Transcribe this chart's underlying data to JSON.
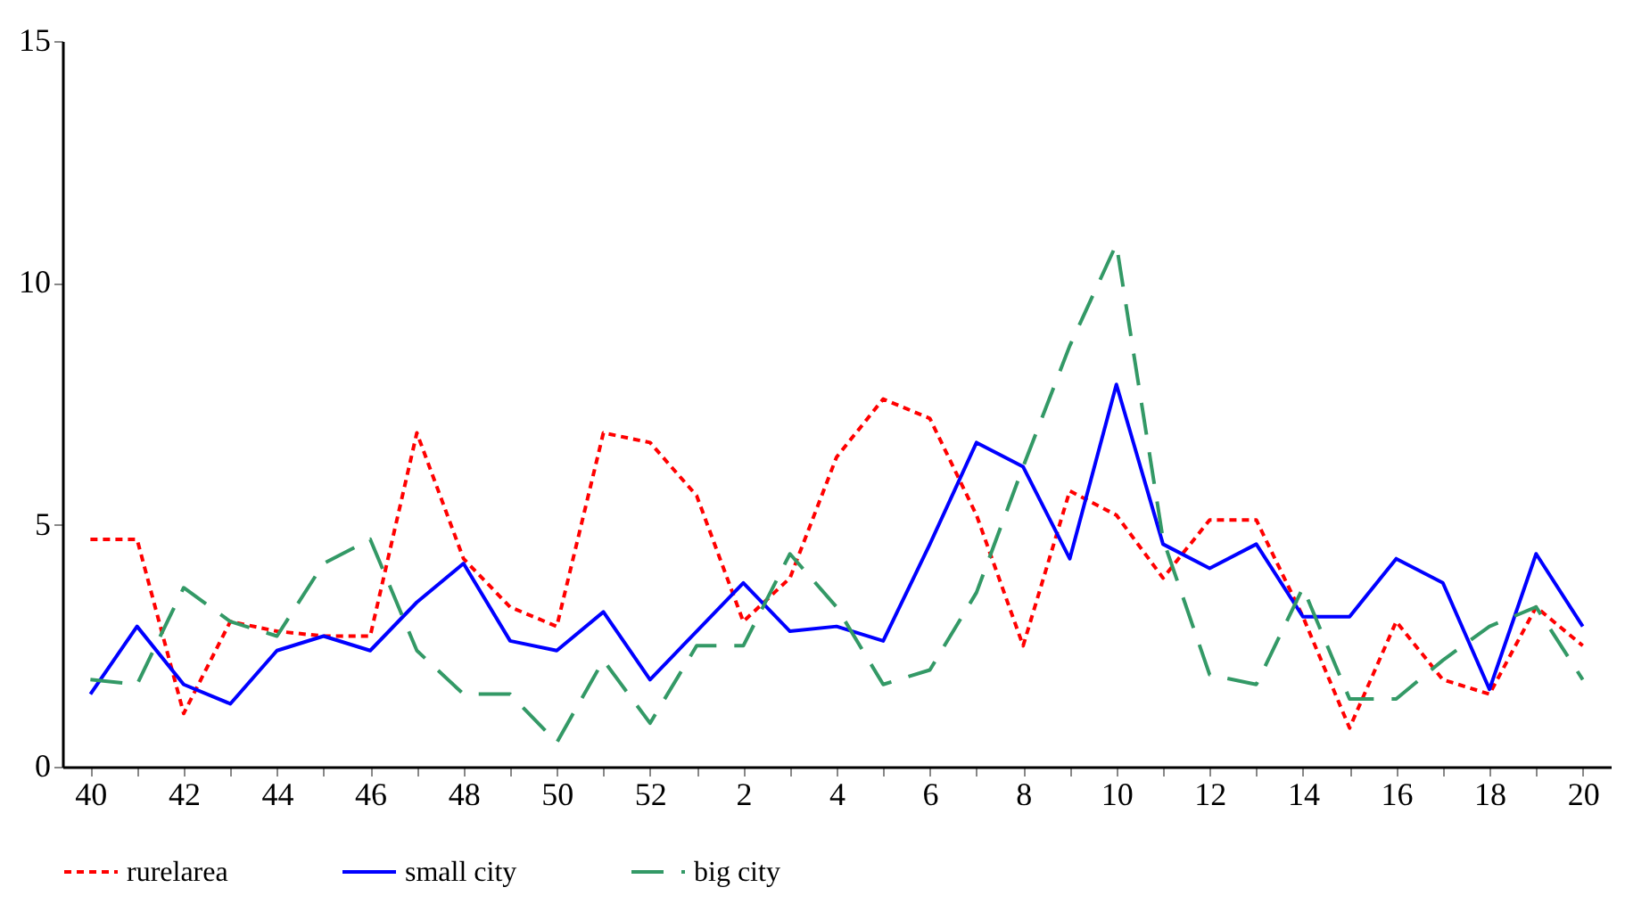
{
  "chart_data": {
    "type": "line",
    "categories": [
      "40",
      null,
      "42",
      null,
      "44",
      null,
      "46",
      null,
      "48",
      null,
      "50",
      null,
      "52",
      null,
      "2",
      null,
      "4",
      null,
      "6",
      null,
      "8",
      null,
      "10",
      null,
      "12",
      null,
      "14",
      null,
      "16",
      null,
      "18",
      null,
      "20"
    ],
    "series": [
      {
        "name": "rurelarea",
        "color": "#ff0000",
        "line_style": "dotted",
        "values": [
          4.7,
          4.7,
          1.1,
          3.0,
          2.8,
          2.7,
          2.7,
          6.9,
          4.3,
          3.3,
          2.9,
          6.9,
          6.7,
          5.6,
          3.0,
          3.9,
          6.4,
          7.6,
          7.2,
          5.2,
          2.5,
          5.7,
          5.2,
          3.9,
          5.1,
          5.1,
          3.1,
          0.8,
          3.0,
          1.8,
          1.5,
          3.3,
          2.5
        ]
      },
      {
        "name": "small city",
        "color": "#0000ff",
        "line_style": "solid",
        "values": [
          1.5,
          2.9,
          1.7,
          1.3,
          2.4,
          2.7,
          2.4,
          3.4,
          4.2,
          2.6,
          2.4,
          3.2,
          1.8,
          2.8,
          3.8,
          2.8,
          2.9,
          2.6,
          4.6,
          6.7,
          6.2,
          4.3,
          7.9,
          4.6,
          4.1,
          4.6,
          3.1,
          3.1,
          4.3,
          3.8,
          1.6,
          4.4,
          2.9
        ]
      },
      {
        "name": "big city",
        "color": "#339966",
        "line_style": "dashed",
        "values": [
          1.8,
          1.7,
          3.7,
          3.0,
          2.7,
          4.2,
          4.7,
          2.4,
          1.5,
          1.5,
          0.5,
          2.2,
          0.9,
          2.5,
          2.5,
          4.4,
          3.3,
          1.7,
          2.0,
          3.6,
          6.2,
          8.7,
          10.8,
          4.7,
          1.9,
          1.7,
          3.7,
          1.4,
          1.4,
          2.2,
          2.9,
          3.3,
          1.8
        ]
      }
    ],
    "ylim": [
      0,
      15
    ],
    "yticks": [
      0,
      5,
      10,
      15
    ],
    "grid": false,
    "legend": "bottom",
    "marker": "none"
  }
}
